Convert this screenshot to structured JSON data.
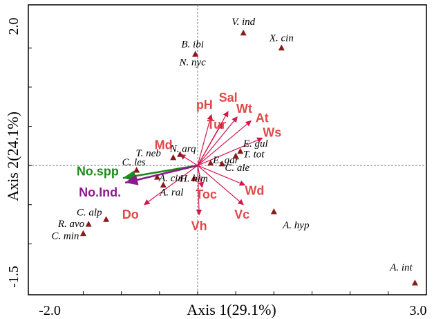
{
  "chart_data": {
    "type": "scatter",
    "title": "",
    "xlabel": "Axis 1(29.1%)",
    "ylabel": "Axis 2(24.1%)",
    "xlim": [
      -2.0,
      3.0
    ],
    "ylim": [
      -1.5,
      2.0
    ],
    "x_ticks": [
      {
        "value": -2.0,
        "label": "-2.0"
      },
      {
        "value": 3.0,
        "label": "3.0"
      }
    ],
    "y_ticks": [
      {
        "value": 2.0,
        "label": "2.0"
      },
      {
        "value": -1.5,
        "label": "-1.5"
      }
    ],
    "grid": false,
    "zero_lines": true,
    "species": [
      {
        "label": "V. ind",
        "x": 0.6,
        "y": 1.69
      },
      {
        "label": "X. cin",
        "x": 1.1,
        "y": 1.5
      },
      {
        "label": "B. ibi",
        "x": -0.03,
        "y": 1.42
      },
      {
        "label": "N. nyc",
        "x": -0.03,
        "y": 1.42
      },
      {
        "label": "N. arq",
        "x": -0.23,
        "y": 0.14
      },
      {
        "label": "T. neb",
        "x": -0.32,
        "y": 0.1
      },
      {
        "label": "E. gul",
        "x": 0.56,
        "y": 0.18
      },
      {
        "label": "T. tot",
        "x": 0.5,
        "y": 0.12
      },
      {
        "label": "C. les",
        "x": -0.8,
        "y": -0.06
      },
      {
        "label": "E. gar",
        "x": 0.17,
        "y": 0.03
      },
      {
        "label": "C. ale",
        "x": 0.32,
        "y": 0.02
      },
      {
        "label": "H. him",
        "x": -0.05,
        "y": -0.17
      },
      {
        "label": "A. cin",
        "x": -0.53,
        "y": -0.15
      },
      {
        "label": "A. ral",
        "x": -0.45,
        "y": -0.25
      },
      {
        "label": "A. hyp",
        "x": 1.0,
        "y": -0.59
      },
      {
        "label": "C. alp",
        "x": -1.2,
        "y": -0.69
      },
      {
        "label": "R. avo",
        "x": -1.43,
        "y": -0.75
      },
      {
        "label": "C. min",
        "x": -1.5,
        "y": -0.87
      },
      {
        "label": "A. int",
        "x": 2.85,
        "y": -1.5
      }
    ],
    "environmental_vectors": [
      {
        "label": "pH",
        "x": 0.18,
        "y": 0.65,
        "color": "#e04848"
      },
      {
        "label": "Sal",
        "x": 0.4,
        "y": 0.69,
        "color": "#e04848"
      },
      {
        "label": "Wt",
        "x": 0.52,
        "y": 0.62,
        "color": "#e04848"
      },
      {
        "label": "Tur",
        "x": 0.32,
        "y": 0.54,
        "color": "#e04848"
      },
      {
        "label": "At",
        "x": 0.7,
        "y": 0.57,
        "color": "#e04848"
      },
      {
        "label": "Ws",
        "x": 0.85,
        "y": 0.35,
        "color": "#e04848"
      },
      {
        "label": "Md",
        "x": -0.23,
        "y": 0.14,
        "color": "#e04848"
      },
      {
        "label": "Toc",
        "x": 0.06,
        "y": -0.28,
        "color": "#e04848"
      },
      {
        "label": "Wd",
        "x": 0.62,
        "y": -0.25,
        "color": "#e04848"
      },
      {
        "label": "Vc",
        "x": 0.6,
        "y": -0.5,
        "color": "#e04848"
      },
      {
        "label": "Vh",
        "x": 0.02,
        "y": -0.63,
        "color": "#e04848"
      },
      {
        "label": "Do",
        "x": -0.7,
        "y": -0.5,
        "color": "#e04848"
      }
    ],
    "diversity_vectors": [
      {
        "label": "No.spp",
        "x": -0.98,
        "y": -0.16,
        "color": "#1a8c1a"
      },
      {
        "label": "No.Ind.",
        "x": -0.95,
        "y": -0.22,
        "color": "#8b1a8b"
      }
    ],
    "colors": {
      "species_marker": "#8b1a1a",
      "env_arrow": "#d4164a",
      "env_text": "#e04848",
      "axis": "#000000",
      "zero_line": "#808080"
    }
  }
}
